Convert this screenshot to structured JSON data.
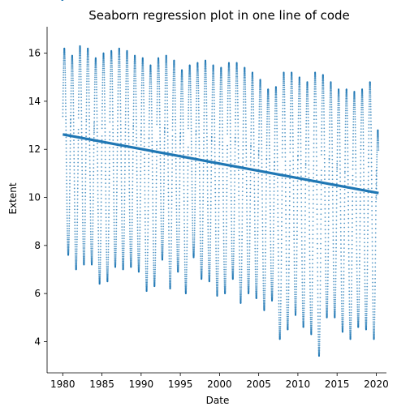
{
  "chart_data": {
    "type": "scatter",
    "title": "Seaborn regression plot in one line of code",
    "xlabel": "Date",
    "ylabel": "Extent",
    "xlim": [
      1978,
      2021.3
    ],
    "ylim": [
      2.7,
      17.1
    ],
    "xticks": [
      1980,
      1985,
      1990,
      1995,
      2000,
      2005,
      2010,
      2015,
      2020
    ],
    "yticks": [
      4,
      6,
      8,
      10,
      12,
      14,
      16
    ],
    "grid": false,
    "legend": "none",
    "colors": {
      "points": "#1f77b4",
      "regression": "#1f77b4"
    },
    "series": [
      {
        "kind": "seasonal_scatter",
        "x_range": [
          1979.9,
          2020.3
        ],
        "samples_per_year": 180,
        "annual_maxima": [
          [
            1980,
            16.2
          ],
          [
            1981,
            15.9
          ],
          [
            1982,
            16.3
          ],
          [
            1983,
            16.2
          ],
          [
            1984,
            15.8
          ],
          [
            1985,
            16.0
          ],
          [
            1986,
            16.1
          ],
          [
            1987,
            16.2
          ],
          [
            1988,
            16.1
          ],
          [
            1989,
            15.9
          ],
          [
            1990,
            15.8
          ],
          [
            1991,
            15.5
          ],
          [
            1992,
            15.8
          ],
          [
            1993,
            15.9
          ],
          [
            1994,
            15.7
          ],
          [
            1995,
            15.3
          ],
          [
            1996,
            15.5
          ],
          [
            1997,
            15.6
          ],
          [
            1998,
            15.7
          ],
          [
            1999,
            15.5
          ],
          [
            2000,
            15.4
          ],
          [
            2001,
            15.6
          ],
          [
            2002,
            15.6
          ],
          [
            2003,
            15.4
          ],
          [
            2004,
            15.2
          ],
          [
            2005,
            14.9
          ],
          [
            2006,
            14.5
          ],
          [
            2007,
            14.6
          ],
          [
            2008,
            15.2
          ],
          [
            2009,
            15.2
          ],
          [
            2010,
            15.0
          ],
          [
            2011,
            14.8
          ],
          [
            2012,
            15.2
          ],
          [
            2013,
            15.1
          ],
          [
            2014,
            14.8
          ],
          [
            2015,
            14.5
          ],
          [
            2016,
            14.5
          ],
          [
            2017,
            14.4
          ],
          [
            2018,
            14.5
          ],
          [
            2019,
            14.8
          ],
          [
            2020,
            12.8
          ]
        ],
        "annual_minima": [
          [
            1980,
            7.6
          ],
          [
            1981,
            7.0
          ],
          [
            1982,
            7.2
          ],
          [
            1983,
            7.2
          ],
          [
            1984,
            6.4
          ],
          [
            1985,
            6.5
          ],
          [
            1986,
            7.1
          ],
          [
            1987,
            7.0
          ],
          [
            1988,
            7.1
          ],
          [
            1989,
            6.9
          ],
          [
            1990,
            6.1
          ],
          [
            1991,
            6.3
          ],
          [
            1992,
            7.4
          ],
          [
            1993,
            6.2
          ],
          [
            1994,
            6.9
          ],
          [
            1995,
            6.0
          ],
          [
            1996,
            7.5
          ],
          [
            1997,
            6.6
          ],
          [
            1998,
            6.5
          ],
          [
            1999,
            5.9
          ],
          [
            2000,
            6.0
          ],
          [
            2001,
            6.6
          ],
          [
            2002,
            5.6
          ],
          [
            2003,
            6.0
          ],
          [
            2004,
            5.8
          ],
          [
            2005,
            5.3
          ],
          [
            2006,
            5.7
          ],
          [
            2007,
            4.1
          ],
          [
            2008,
            4.5
          ],
          [
            2009,
            5.1
          ],
          [
            2010,
            4.6
          ],
          [
            2011,
            4.3
          ],
          [
            2012,
            3.4
          ],
          [
            2013,
            5.0
          ],
          [
            2014,
            5.0
          ],
          [
            2015,
            4.4
          ],
          [
            2016,
            4.1
          ],
          [
            2017,
            4.6
          ],
          [
            2018,
            4.5
          ],
          [
            2019,
            4.1
          ],
          [
            2020,
            4.1
          ]
        ]
      },
      {
        "kind": "regression_line",
        "x": [
          1980,
          2020.3
        ],
        "y": [
          12.62,
          10.18
        ]
      }
    ]
  }
}
